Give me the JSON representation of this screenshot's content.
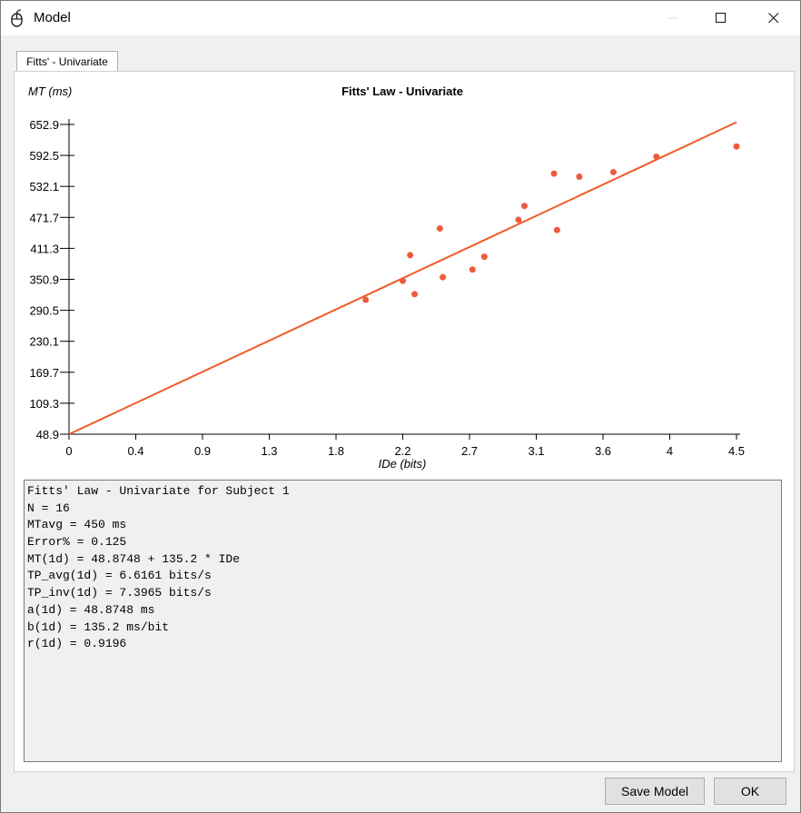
{
  "window": {
    "title": "Model"
  },
  "tabs": [
    {
      "label": "Fitts' - Univariate"
    }
  ],
  "chart_data": {
    "type": "scatter",
    "title": "Fitts' Law - Univariate",
    "xlabel": "IDe (bits)",
    "ylabel": "MT (ms)",
    "xlim": [
      0,
      4.5
    ],
    "ylim": [
      48.9,
      652.9
    ],
    "x_ticks": [
      "0",
      "0.4",
      "0.9",
      "1.3",
      "1.8",
      "2.2",
      "2.7",
      "3.1",
      "3.6",
      "4",
      "4.5"
    ],
    "y_ticks": [
      "652.9",
      "592.5",
      "532.1",
      "471.7",
      "411.3",
      "350.9",
      "290.5",
      "230.1",
      "169.7",
      "109.3",
      "48.9"
    ],
    "points": [
      {
        "x": 2.0,
        "y": 311
      },
      {
        "x": 2.25,
        "y": 348
      },
      {
        "x": 2.3,
        "y": 398
      },
      {
        "x": 2.33,
        "y": 322
      },
      {
        "x": 2.5,
        "y": 450
      },
      {
        "x": 2.52,
        "y": 355
      },
      {
        "x": 2.72,
        "y": 370
      },
      {
        "x": 2.8,
        "y": 395
      },
      {
        "x": 3.03,
        "y": 467
      },
      {
        "x": 3.07,
        "y": 494
      },
      {
        "x": 3.27,
        "y": 557
      },
      {
        "x": 3.29,
        "y": 447
      },
      {
        "x": 3.44,
        "y": 551
      },
      {
        "x": 3.67,
        "y": 560
      },
      {
        "x": 3.96,
        "y": 590
      },
      {
        "x": 4.5,
        "y": 610
      }
    ],
    "regression": {
      "intercept": 48.8748,
      "slope": 135.2
    },
    "colors": {
      "points": "#f05a3c",
      "line": "#f05a28"
    }
  },
  "output": {
    "lines": [
      "Fitts' Law - Univariate for Subject 1",
      "N = 16",
      "MTavg = 450 ms",
      "Error% = 0.125",
      "MT(1d) = 48.8748 + 135.2 * IDe",
      "TP_avg(1d) = 6.6161 bits/s",
      "TP_inv(1d) = 7.3965 bits/s",
      "a(1d) = 48.8748 ms",
      "b(1d) = 135.2 ms/bit",
      "r(1d) = 0.9196"
    ]
  },
  "buttons": {
    "save_model": "Save Model",
    "ok": "OK"
  }
}
